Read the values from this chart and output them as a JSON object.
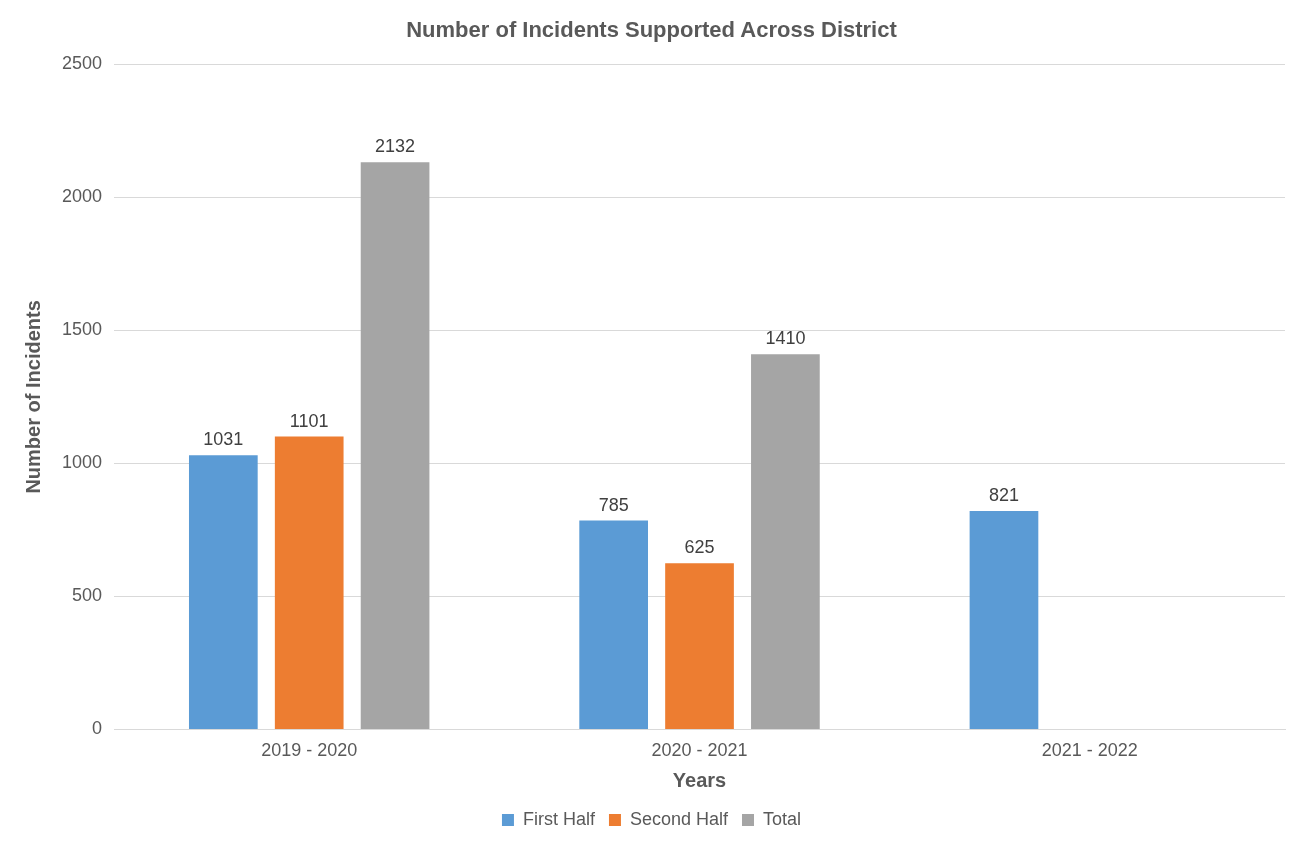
{
  "chart_data": {
    "type": "bar",
    "title": "Number of Incidents Supported Across District",
    "xlabel": "Years",
    "ylabel": "Number of Incidents",
    "categories": [
      "2019 - 2020",
      "2020 - 2021",
      "2021 - 2022"
    ],
    "series": [
      {
        "name": "First Half",
        "color": "#5b9bd5",
        "values": [
          1031,
          785,
          821
        ]
      },
      {
        "name": "Second Half",
        "color": "#ed7d31",
        "values": [
          1101,
          625,
          null
        ]
      },
      {
        "name": "Total",
        "color": "#a5a5a5",
        "values": [
          2132,
          1410,
          null
        ]
      }
    ],
    "ylim": [
      0,
      2500
    ],
    "yticks": [
      0,
      500,
      1000,
      1500,
      2000,
      2500
    ],
    "grid": "y",
    "legend": "bottom",
    "data_labels": true
  }
}
